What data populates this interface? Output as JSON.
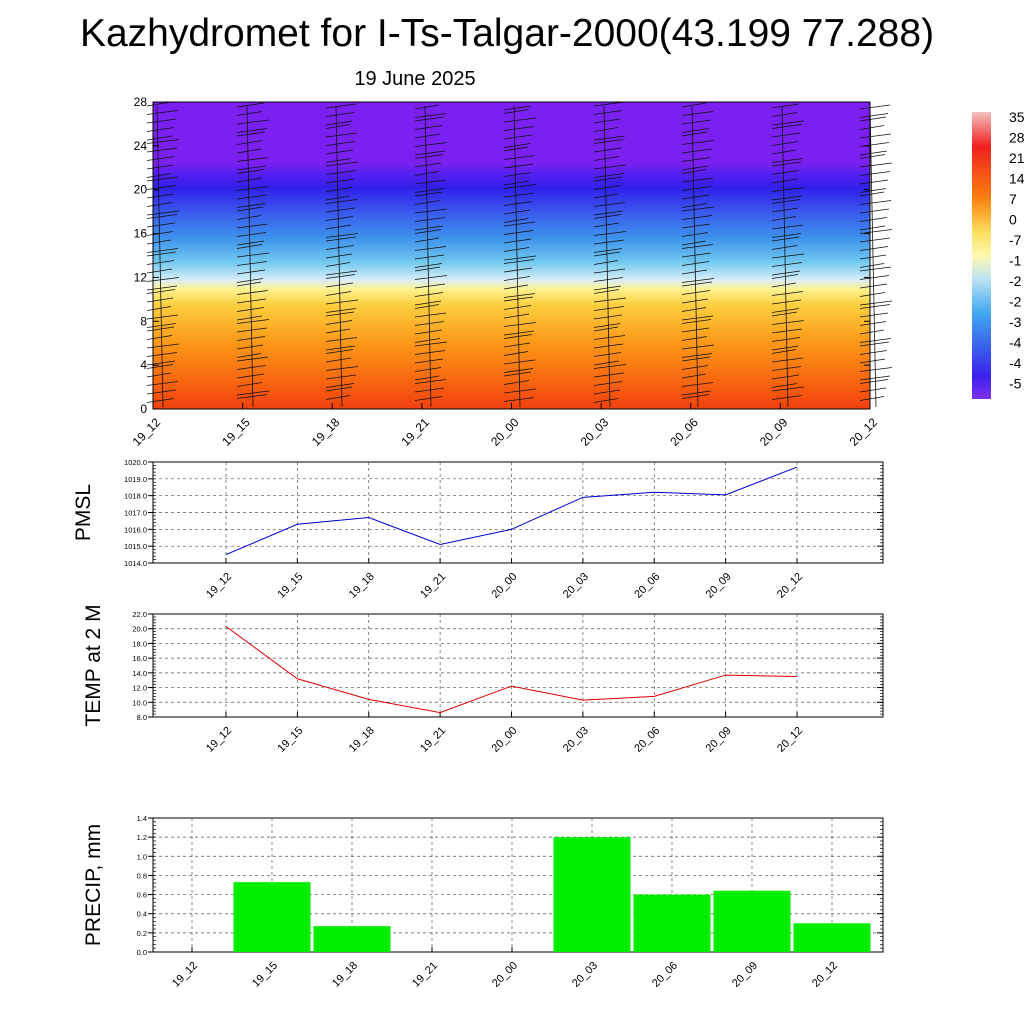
{
  "title": "Kazhydromet for I-Ts-Talgar-2000(43.199 77.288)",
  "subtitle": "19 June 2025",
  "time_labels": [
    "19_12",
    "19_15",
    "19_18",
    "19_21",
    "20_00",
    "20_03",
    "20_06",
    "20_09",
    "20_12"
  ],
  "chart_data": [
    {
      "type": "heatmap",
      "description_hidden": true,
      "y_ticks": [
        "0",
        "4",
        "8",
        "12",
        "16",
        "20",
        "24",
        "28"
      ],
      "ylim": [
        0,
        28
      ],
      "colorbar_labels": [
        "35",
        "28",
        "21",
        "14",
        "7",
        "0",
        "-7",
        "-1",
        "-2",
        "-2",
        "-3",
        "-4",
        "-4",
        "-5"
      ],
      "colors": {
        "warm": "#f04010",
        "mid": "#ffee80",
        "cool": "#40a0f0",
        "cold": "#7a20f0"
      }
    },
    {
      "type": "line",
      "ylabel": "PMSL",
      "ylim": [
        1014.0,
        1020.0
      ],
      "y_ticks": [
        "1014.0",
        "1015.0",
        "1016.0",
        "1017.0",
        "1018.0",
        "1019.0",
        "1020.0"
      ],
      "values": [
        1014.5,
        1016.3,
        1016.7,
        1015.1,
        1016.0,
        1017.9,
        1018.2,
        1018.05,
        1019.7
      ],
      "color": "#0000cc"
    },
    {
      "type": "line",
      "ylabel": "TEMP at 2 M",
      "ylim": [
        8.0,
        22.0
      ],
      "y_ticks": [
        "8.0",
        "10.0",
        "12.0",
        "14.0",
        "16.0",
        "18.0",
        "20.0",
        "22.0"
      ],
      "values": [
        20.3,
        13.2,
        10.4,
        8.6,
        12.2,
        10.3,
        10.8,
        13.7,
        13.5
      ],
      "color": "#e00000"
    },
    {
      "type": "bar",
      "ylabel": "PRECIP, mm",
      "ylim": [
        0.0,
        1.4
      ],
      "y_ticks": [
        "0.0",
        "0.2",
        "0.4",
        "0.6",
        "0.8",
        "1.0",
        "1.2",
        "1.4"
      ],
      "values": [
        0,
        0.73,
        0.27,
        0,
        0,
        1.2,
        0.6,
        0.64,
        0.3
      ],
      "color": "#00ee00"
    }
  ]
}
